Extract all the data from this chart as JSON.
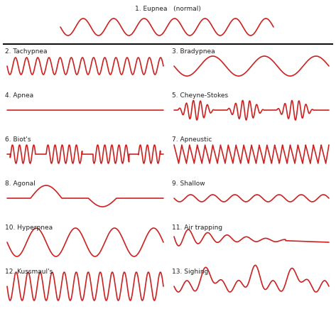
{
  "wave_color": "#cc2222",
  "bg_color": "#ffffff",
  "separator_color": "#111111",
  "font_size_label": 6.5,
  "wave_lw": 1.2,
  "labels": [
    "1. Eupnea   (normal)",
    "2. Tachypnea",
    "3. Bradypnea",
    "4. Apnea",
    "5. Cheyne-Stokes",
    "6. Biot's",
    "7. Apneustic",
    "8. Agonal",
    "9. Shallow",
    "10. Hyperpnea",
    "11. Air trapping",
    "12. Kussmaul's",
    "13. Sighing"
  ],
  "title_color": "#222222"
}
